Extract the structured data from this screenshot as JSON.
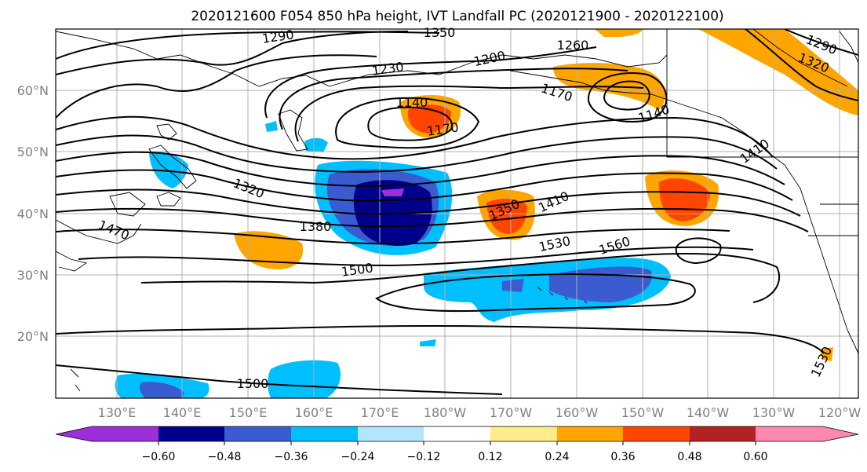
{
  "title": "2020121600 F054 850 hPa height, IVT Landfall PC (2020121900 - 2020122100)",
  "lon_labels": [
    "130°E",
    "140°E",
    "150°E",
    "160°E",
    "170°E",
    "180°W",
    "170°W",
    "160°W",
    "150°W",
    "140°W",
    "130°W",
    "120°W"
  ],
  "lat_labels": [
    "60°N",
    "50°N",
    "40°N",
    "30°N",
    "20°N"
  ],
  "colorbar": {
    "ticks": [
      "−0.60",
      "−0.48",
      "−0.36",
      "−0.24",
      "−0.12",
      "0.12",
      "0.24",
      "0.36",
      "0.48",
      "0.60"
    ],
    "colors": [
      "#9b30d8",
      "#00008b",
      "#3a5cd0",
      "#00bfff",
      "#b3e5fc",
      "#ffffff",
      "#ffeb8a",
      "#ffa500",
      "#ff4500",
      "#b22222",
      "#ff88b0"
    ]
  },
  "contour_labels": [
    {
      "text": "1290"
    },
    {
      "text": "1350"
    },
    {
      "text": "1260"
    },
    {
      "text": "1290"
    },
    {
      "text": "1320"
    },
    {
      "text": "1230"
    },
    {
      "text": "1200"
    },
    {
      "text": "1140"
    },
    {
      "text": "1170"
    },
    {
      "text": "1170"
    },
    {
      "text": "1140"
    },
    {
      "text": "1410"
    },
    {
      "text": "1320"
    },
    {
      "text": "1350"
    },
    {
      "text": "1410"
    },
    {
      "text": "1380"
    },
    {
      "text": "1470"
    },
    {
      "text": "1530"
    },
    {
      "text": "1560"
    },
    {
      "text": "1500"
    },
    {
      "text": "1500"
    },
    {
      "text": "1530"
    }
  ]
}
